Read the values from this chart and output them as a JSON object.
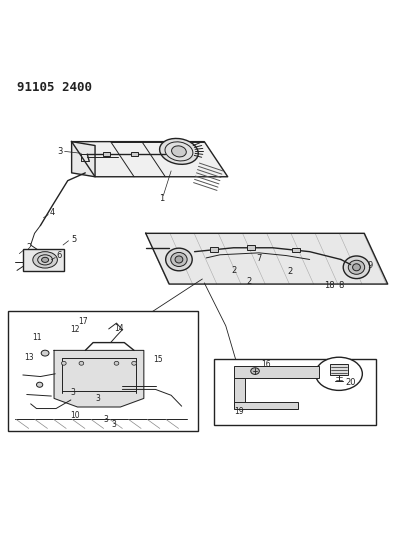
{
  "title": "91105 2400",
  "bg_color": "#ffffff",
  "line_color": "#222222",
  "figsize": [
    3.93,
    5.33
  ],
  "dpi": 100
}
